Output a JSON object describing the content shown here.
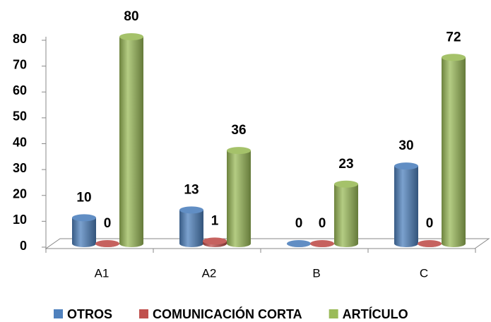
{
  "chart_data": {
    "type": "bar3d",
    "categories": [
      "A1",
      "A2",
      "B",
      "C"
    ],
    "series": [
      {
        "name": "OTROS",
        "color": "#4f81bd",
        "values": [
          10,
          13,
          0,
          30
        ]
      },
      {
        "name": "COMUNICACIÓN CORTA",
        "color": "#c0504d",
        "values": [
          0,
          1,
          0,
          0
        ]
      },
      {
        "name": "ARTÍCULO",
        "color": "#9bbb59",
        "values": [
          80,
          36,
          23,
          72
        ]
      }
    ],
    "ylim": [
      0,
      80
    ],
    "yticks": [
      0,
      10,
      20,
      30,
      40,
      50,
      60,
      70,
      80
    ],
    "legend": "bottom",
    "data_labels": true
  }
}
